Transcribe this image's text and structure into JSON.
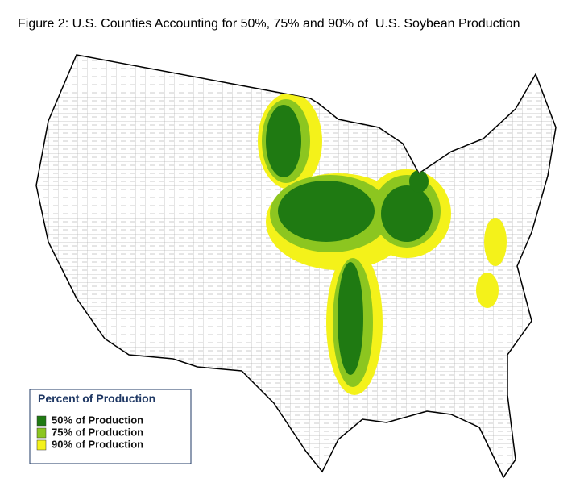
{
  "title": "Figure 2: U.S. Counties Accounting for 50%, 75% and 90% of  U.S. Soybean Production",
  "legend": {
    "title": "Percent of Production",
    "items": [
      {
        "label": "50% of Production",
        "color": "#1f7a12"
      },
      {
        "label": "75% of Production",
        "color": "#8cc620"
      },
      {
        "label": "90% of Production",
        "color": "#f4f21a"
      }
    ]
  }
}
